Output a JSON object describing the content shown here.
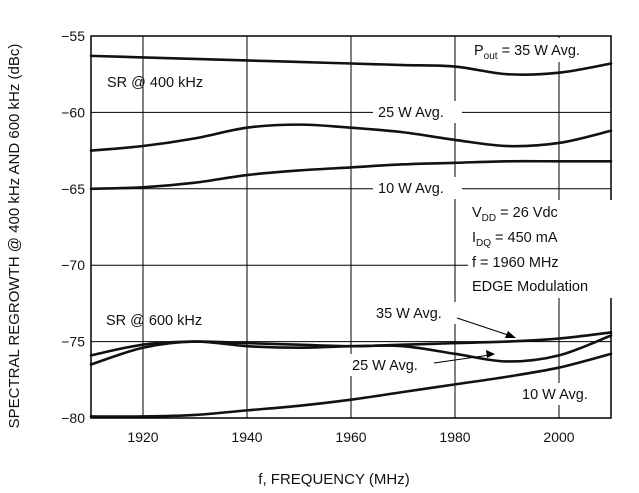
{
  "chart_data": {
    "type": "line",
    "xlabel": "f, FREQUENCY (MHz)",
    "ylabel": "SPECTRAL REGROWTH @ 400 kHz AND 600 kHz (dBc)",
    "xlim": [
      1910,
      2010
    ],
    "ylim": [
      -80,
      -55
    ],
    "xticks": [
      1920,
      1940,
      1960,
      1980,
      2000
    ],
    "yticks": [
      -80,
      -75,
      -70,
      -65,
      -60,
      -55
    ],
    "grid": true,
    "x": [
      1910,
      1920,
      1930,
      1940,
      1950,
      1960,
      1970,
      1980,
      1990,
      2000,
      2010
    ],
    "series": [
      {
        "group": "SR @ 400 kHz",
        "power": "35 W",
        "values": [
          -56.3,
          -56.4,
          -56.5,
          -56.6,
          -56.7,
          -56.8,
          -56.9,
          -57.0,
          -57.5,
          -57.4,
          -56.8
        ]
      },
      {
        "group": "SR @ 400 kHz",
        "power": "25 W",
        "values": [
          -62.5,
          -62.2,
          -61.7,
          -61.0,
          -60.8,
          -61.0,
          -61.3,
          -61.8,
          -62.2,
          -62.0,
          -61.2
        ]
      },
      {
        "group": "SR @ 400 kHz",
        "power": "10 W",
        "values": [
          -65.0,
          -64.9,
          -64.6,
          -64.1,
          -63.8,
          -63.6,
          -63.4,
          -63.3,
          -63.2,
          -63.2,
          -63.2
        ]
      },
      {
        "group": "SR @ 600 kHz",
        "power": "35 W",
        "values": [
          -75.9,
          -75.2,
          -75.0,
          -75.1,
          -75.2,
          -75.3,
          -75.2,
          -75.1,
          -75.0,
          -74.8,
          -74.4
        ]
      },
      {
        "group": "SR @ 600 kHz",
        "power": "25 W",
        "values": [
          -76.5,
          -75.4,
          -75.0,
          -75.3,
          -75.4,
          -75.3,
          -75.3,
          -75.8,
          -76.3,
          -75.9,
          -74.6
        ]
      },
      {
        "group": "SR @ 600 kHz",
        "power": "10 W",
        "values": [
          -79.9,
          -79.9,
          -79.8,
          -79.5,
          -79.2,
          -78.8,
          -78.3,
          -77.8,
          -77.3,
          -76.7,
          -75.8
        ]
      }
    ],
    "annotations": {
      "sr400": "SR @ 400 kHz",
      "sr600": "SR @ 600 kHz",
      "pout_prefix": "P",
      "pout_sub": "out",
      "pout_rest": " = 35 W Avg.",
      "avg25_top": "25 W Avg.",
      "avg10_top": "10 W Avg.",
      "vdd_prefix": "V",
      "vdd_sub": "DD",
      "vdd_rest": " = 26 Vdc",
      "idq_prefix": "I",
      "idq_sub": "DQ",
      "idq_rest": " = 450 mA",
      "freq": "f = 1960 MHz",
      "mod": "EDGE Modulation",
      "avg35_bottom": "35 W Avg.",
      "avg25_bottom": "25 W Avg.",
      "avg10_bottom": "10 W Avg."
    }
  }
}
